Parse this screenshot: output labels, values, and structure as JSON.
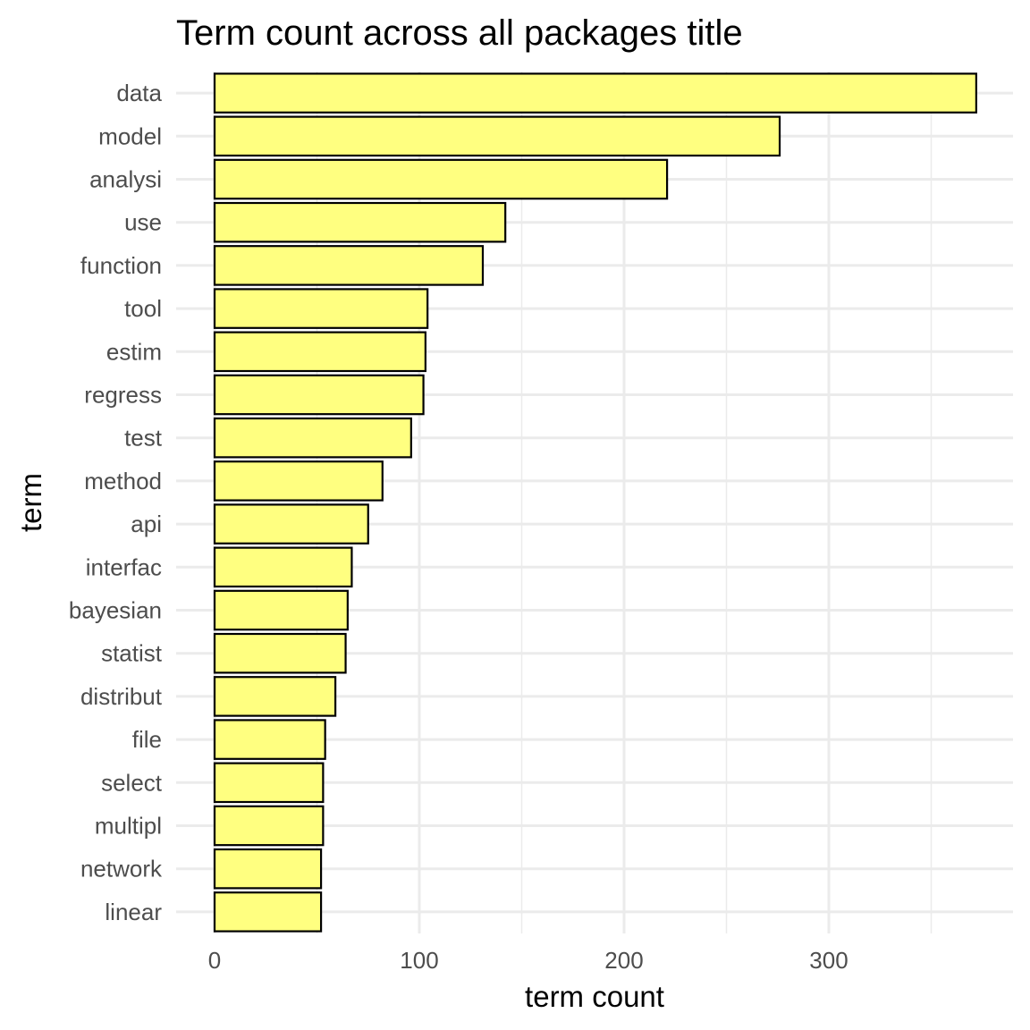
{
  "chart_data": {
    "type": "bar",
    "orientation": "horizontal",
    "title": "Term count across all packages title",
    "xlabel": "term count",
    "ylabel": "term",
    "categories": [
      "data",
      "model",
      "analysi",
      "use",
      "function",
      "tool",
      "estim",
      "regress",
      "test",
      "method",
      "api",
      "interfac",
      "bayesian",
      "statist",
      "distribut",
      "file",
      "select",
      "multipl",
      "network",
      "linear"
    ],
    "values": [
      372,
      276,
      221,
      142,
      131,
      104,
      103,
      102,
      96,
      82,
      75,
      67,
      65,
      64,
      59,
      54,
      53,
      53,
      52,
      52
    ],
    "xlim": [
      0,
      390
    ],
    "xticks": [
      0,
      100,
      200,
      300
    ],
    "xtick_labels": [
      "0",
      "100",
      "200",
      "300"
    ],
    "bar_fill": "#ffff80",
    "bar_outline": "#000000",
    "grid": true
  }
}
